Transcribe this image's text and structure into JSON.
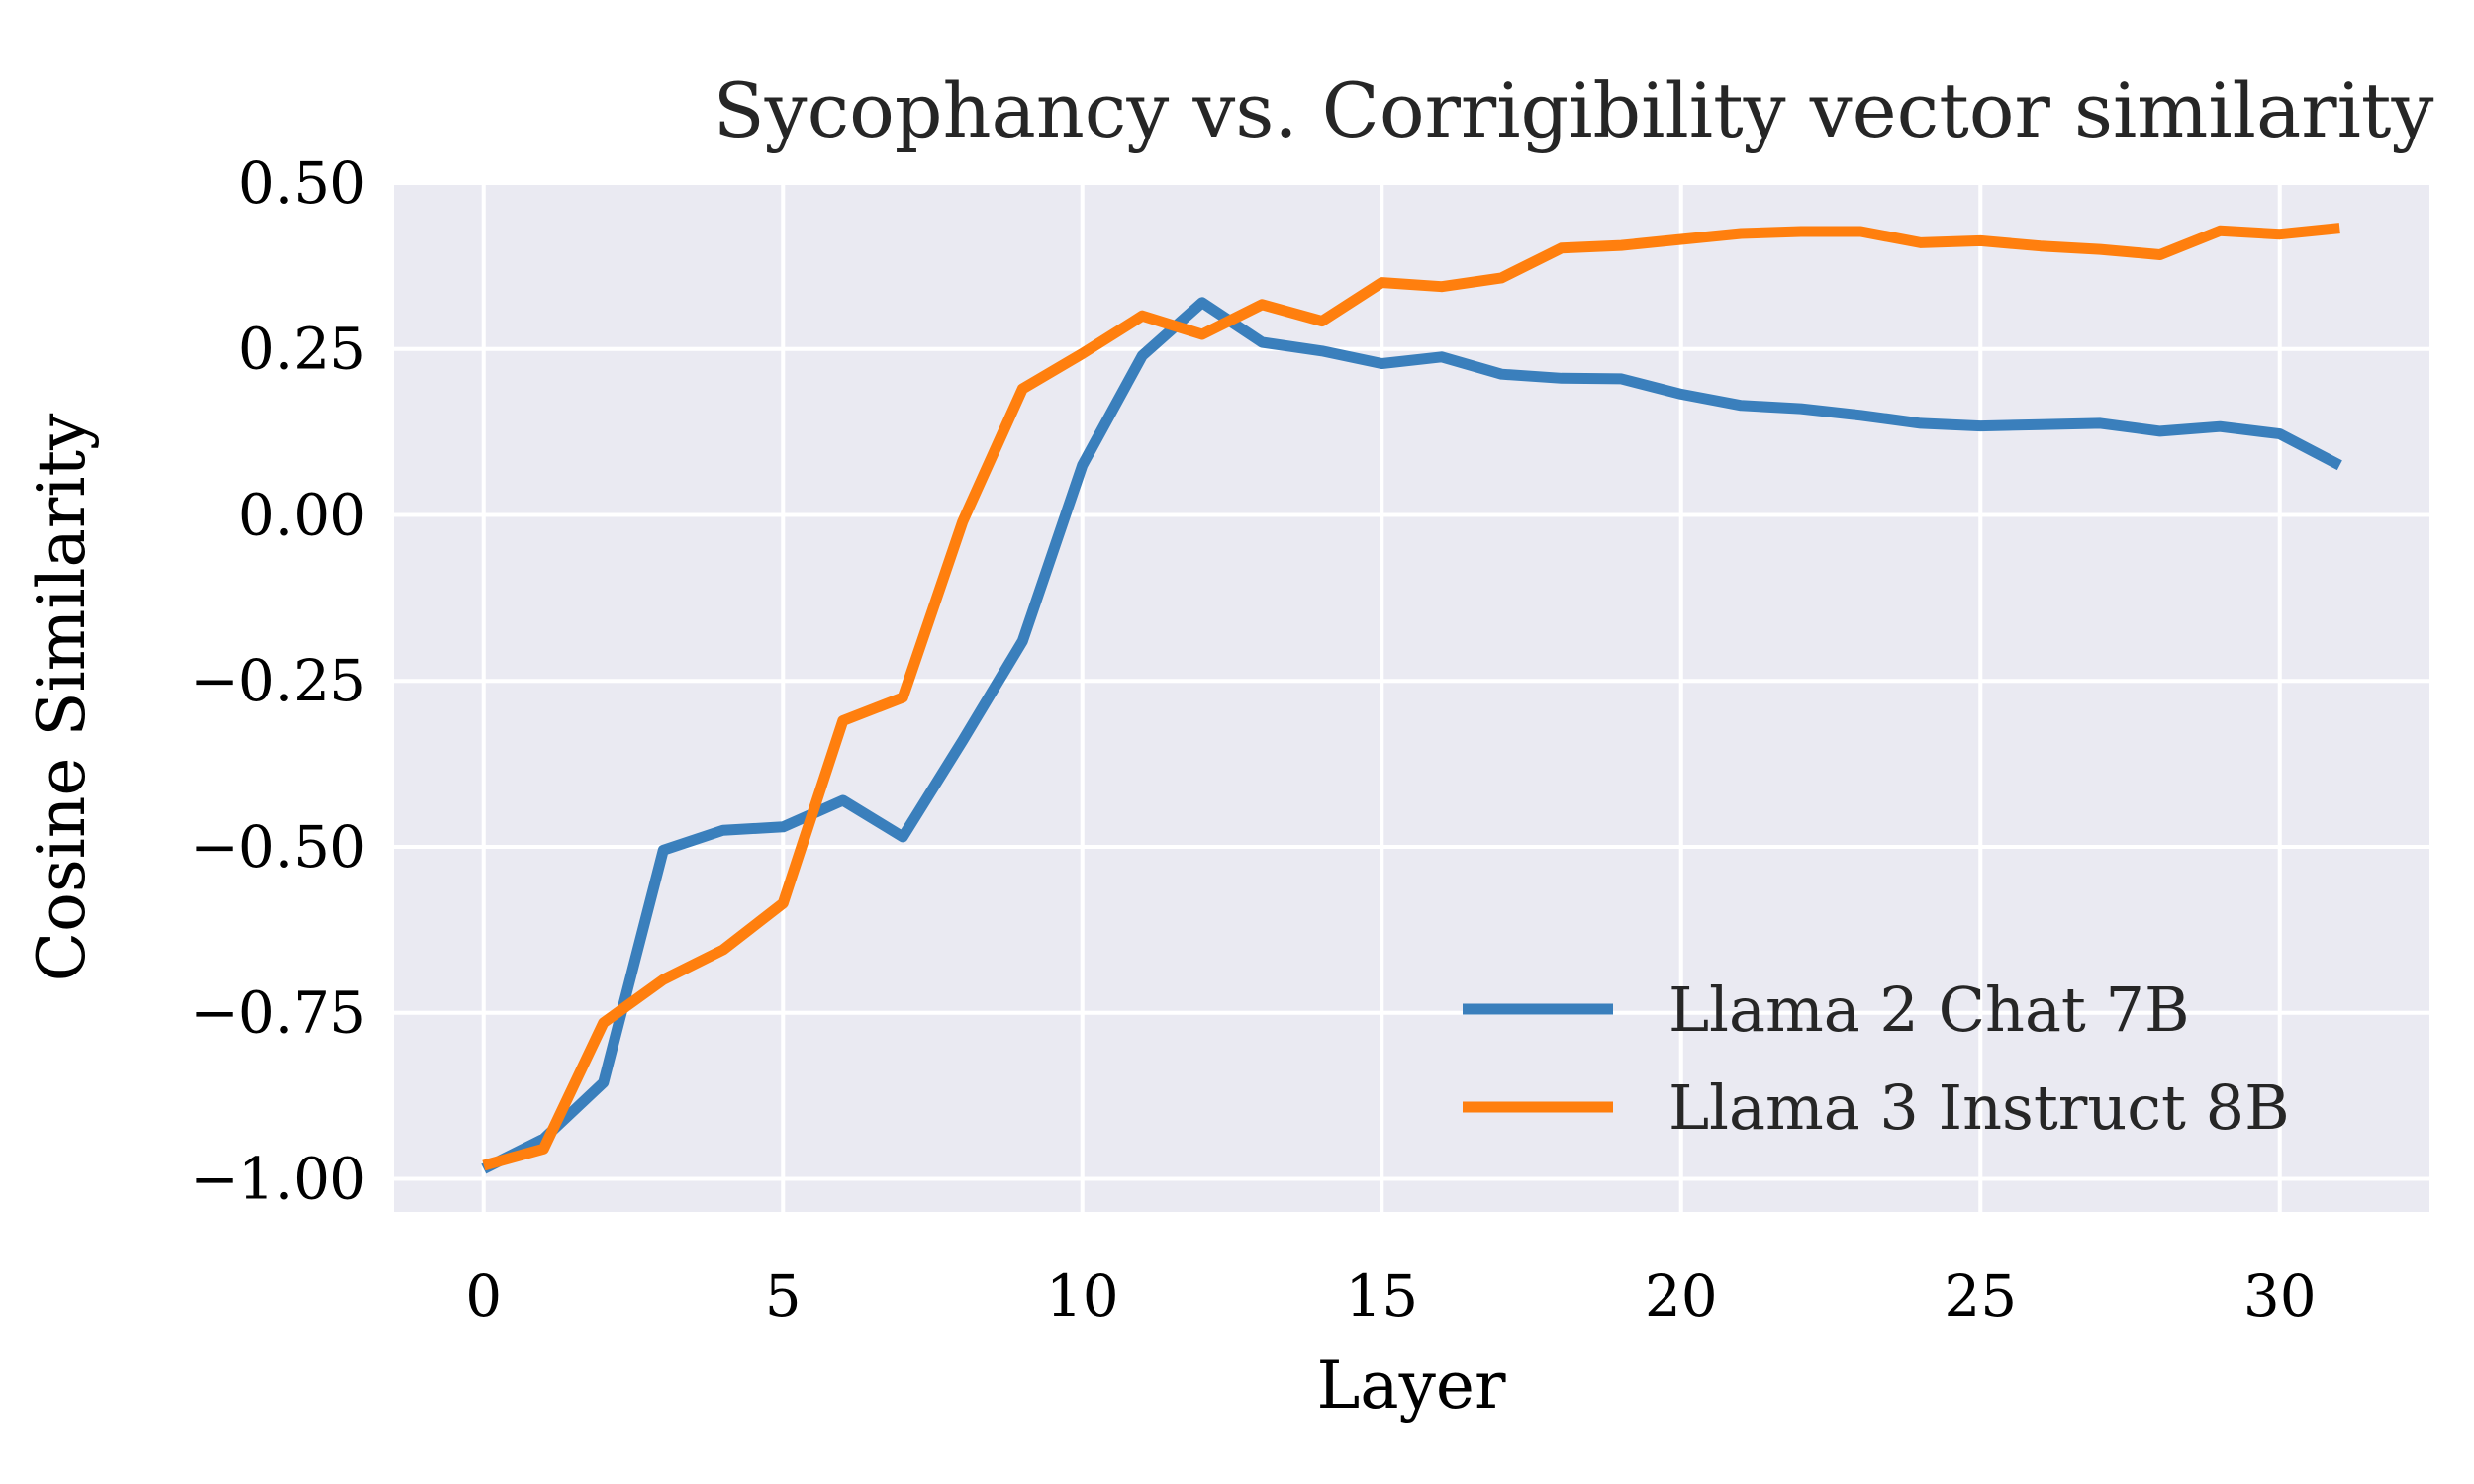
{
  "chart_data": {
    "type": "line",
    "title": "Sycophancy vs. Corrigibility vector similarity",
    "xlabel": "Layer",
    "ylabel": "Cosine Similarity",
    "xlim": [
      -1.5,
      32.5
    ],
    "ylim": [
      -1.05,
      0.5
    ],
    "xticks": [
      0,
      5,
      10,
      15,
      20,
      25,
      30
    ],
    "xtick_labels": [
      "0",
      "5",
      "10",
      "15",
      "20",
      "25",
      "30"
    ],
    "yticks": [
      0.5,
      0.25,
      0.0,
      -0.25,
      -0.5,
      -0.75,
      -1.0
    ],
    "ytick_labels": [
      "0.50",
      "0.25",
      "0.00",
      "−0.25",
      "−0.50",
      "−0.75",
      "−1.00"
    ],
    "grid": true,
    "legend_position": "lower-right",
    "x": [
      0,
      1,
      2,
      3,
      4,
      5,
      6,
      7,
      8,
      9,
      10,
      11,
      12,
      13,
      14,
      15,
      16,
      17,
      18,
      19,
      20,
      21,
      22,
      23,
      24,
      25,
      26,
      27,
      28,
      29,
      30,
      31
    ],
    "series": [
      {
        "name": "Llama 2 Chat 7B",
        "color": "#3a7fbc",
        "values": [
          -0.985,
          -0.94,
          -0.855,
          -0.505,
          -0.475,
          -0.47,
          -0.43,
          -0.485,
          -0.34,
          -0.19,
          0.075,
          0.24,
          0.32,
          0.26,
          0.247,
          0.228,
          0.238,
          0.212,
          0.206,
          0.205,
          0.182,
          0.165,
          0.16,
          0.15,
          0.138,
          0.134,
          0.136,
          0.138,
          0.126,
          0.133,
          0.122,
          0.075
        ]
      },
      {
        "name": "Llama 3 Instruct 8B",
        "color": "#ff7f0e",
        "values": [
          -0.98,
          -0.955,
          -0.765,
          -0.7,
          -0.655,
          -0.585,
          -0.31,
          -0.275,
          -0.01,
          0.19,
          0.243,
          0.3,
          0.272,
          0.317,
          0.292,
          0.35,
          0.344,
          0.357,
          0.402,
          0.406,
          0.415,
          0.424,
          0.427,
          0.427,
          0.41,
          0.413,
          0.405,
          0.4,
          0.392,
          0.428,
          0.423,
          0.432
        ]
      }
    ]
  }
}
